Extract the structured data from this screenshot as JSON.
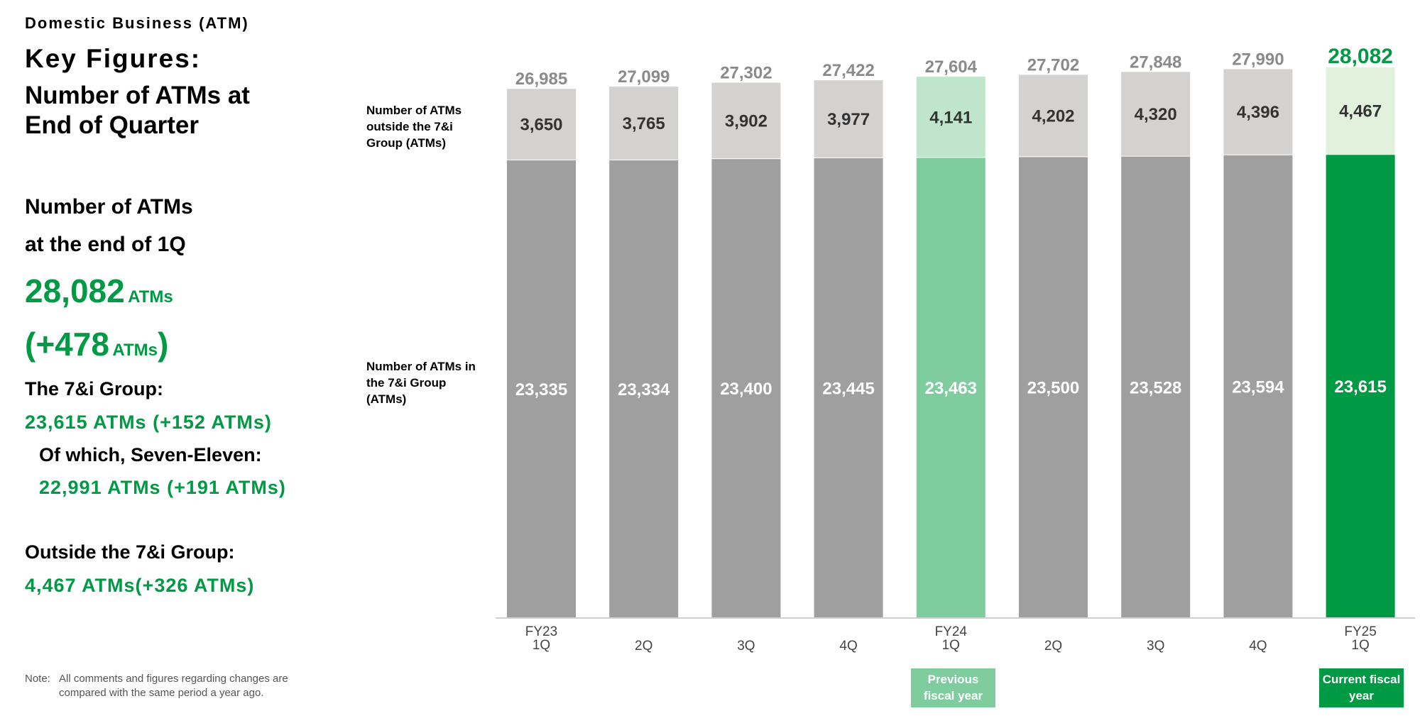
{
  "header": {
    "section": "Domestic Business (ATM)",
    "title_line1": "Key Figures:",
    "title_line2": "Number of ATMs at",
    "title_line3": "End of Quarter"
  },
  "summary": {
    "heading_line1": "Number of ATMs",
    "heading_line2": "at the end of 1Q",
    "total_value": "28,082",
    "total_unit": "ATMs",
    "change_open": "(+478",
    "change_unit": "ATMs",
    "change_close": ")",
    "group_label": "The 7&i Group:",
    "group_value": "23,615 ATMs (+152 ATMs)",
    "seven_eleven_label": "Of which, Seven-Eleven:",
    "seven_eleven_value": "22,991 ATMs (+191 ATMs)",
    "outside_label": "Outside the 7&i Group:",
    "outside_value": "4,467 ATMs(+326 ATMs)"
  },
  "note": {
    "label": "Note:",
    "line1": "All comments and figures regarding changes are",
    "line2": "compared with the same period a year ago."
  },
  "captions": {
    "outside": "Number of ATMs outside the 7&i Group (ATMs)",
    "inside": "Number of ATMs in the 7&i Group (ATMs)"
  },
  "badges": {
    "previous": "Previous fiscal year",
    "current": "Current fiscal year"
  },
  "colors": {
    "grey_bottom": "#a09f9f",
    "grey_top": "#d4d2d1",
    "prev_bottom": "#7fcc9f",
    "prev_top": "#bfe6cd",
    "curr_bottom": "#009944",
    "curr_top": "#e1f1dc",
    "accent_green": "#009944"
  },
  "chart_data": {
    "type": "bar",
    "stacked": true,
    "title": "",
    "categories": [
      [
        "FY23",
        "1Q"
      ],
      [
        "2Q"
      ],
      [
        "3Q"
      ],
      [
        "4Q"
      ],
      [
        "FY24",
        "1Q"
      ],
      [
        "2Q"
      ],
      [
        "3Q"
      ],
      [
        "4Q"
      ],
      [
        "FY25",
        "1Q"
      ]
    ],
    "series": [
      {
        "name": "Number of ATMs in the 7&i Group (ATMs)",
        "values": [
          23335,
          23334,
          23400,
          23445,
          23463,
          23500,
          23528,
          23594,
          23615
        ]
      },
      {
        "name": "Number of ATMs outside the 7&i Group (ATMs)",
        "values": [
          3650,
          3765,
          3902,
          3977,
          4141,
          4202,
          4320,
          4396,
          4467
        ]
      }
    ],
    "totals": [
      26985,
      27099,
      27302,
      27422,
      27604,
      27702,
      27848,
      27990,
      28082
    ],
    "highlight": {
      "previous_fiscal_year": 4,
      "current_fiscal_year": 8
    },
    "grid": false,
    "legend": "left"
  }
}
